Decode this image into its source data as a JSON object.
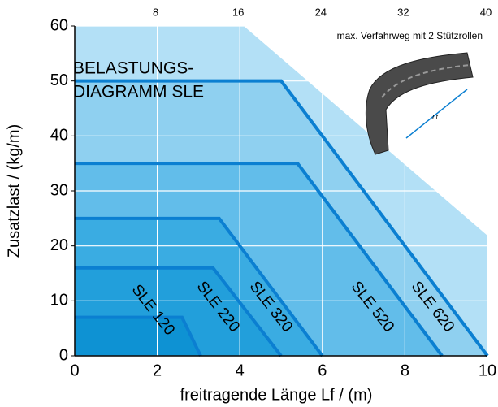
{
  "chart_data": {
    "type": "line",
    "title": "BELASTUNGS-",
    "subtitle": "DIAGRAMM SLE",
    "annotation": "max. Verfahrweg mit 2 Stützrollen",
    "image_label": "Lf",
    "x_label": "freitragende Länge Lf /  (m)",
    "y_label": "Zusatzlast / (kg/m)",
    "xlim": [
      0,
      10
    ],
    "xticks": [
      0,
      2,
      4,
      6,
      8,
      10
    ],
    "x2lim": [
      0,
      40
    ],
    "x2ticks": [
      8,
      16,
      24,
      32,
      40
    ],
    "ylim": [
      0,
      60
    ],
    "yticks": [
      0,
      10,
      20,
      30,
      40,
      50,
      60
    ],
    "grid": true,
    "series": [
      {
        "name": "SLE 620",
        "color": "#0b7fd1",
        "fill": "#8fd0f0",
        "x": [
          0,
          5.0,
          10
        ],
        "values": [
          50,
          50,
          0
        ]
      },
      {
        "name": "SLE 520",
        "color": "#0b7fd1",
        "fill": "#62bdea",
        "x": [
          0,
          5.4,
          8.9
        ],
        "values": [
          35,
          35,
          0
        ]
      },
      {
        "name": "SLE 320",
        "color": "#0b7fd1",
        "fill": "#3aace2",
        "x": [
          0,
          3.5,
          6
        ],
        "values": [
          25,
          25,
          0
        ]
      },
      {
        "name": "SLE 220",
        "color": "#0b7fd1",
        "fill": "#229fdb",
        "x": [
          0,
          3.35,
          5
        ],
        "values": [
          16,
          16,
          0
        ]
      },
      {
        "name": "SLE 120",
        "color": "#0b7fd1",
        "fill": "#0e92d3",
        "x": [
          0,
          2.6,
          3.05
        ],
        "values": [
          7,
          7,
          0
        ]
      }
    ]
  }
}
